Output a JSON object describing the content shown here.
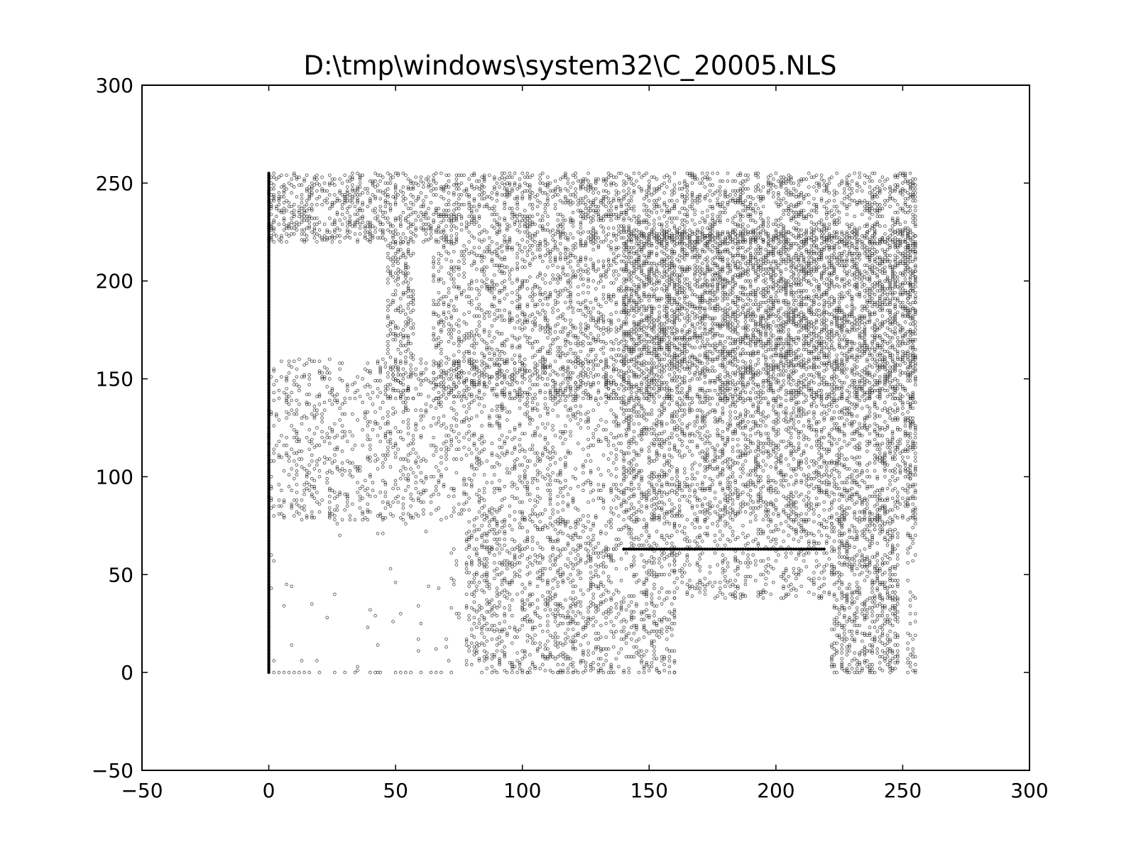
{
  "chart_data": {
    "type": "scatter",
    "title": "D:\\tmp\\windows\\system32\\C_20005.NLS",
    "xlabel": "",
    "ylabel": "",
    "xlim": [
      -50,
      300
    ],
    "ylim": [
      -50,
      300
    ],
    "x_ticks": [
      -50,
      0,
      50,
      100,
      150,
      200,
      250,
      300
    ],
    "y_ticks": [
      -50,
      0,
      50,
      100,
      150,
      200,
      250,
      300
    ],
    "x_tick_labels": [
      "−50",
      "0",
      "50",
      "100",
      "150",
      "200",
      "250",
      "300"
    ],
    "y_tick_labels": [
      "−50",
      "0",
      "50",
      "100",
      "150",
      "200",
      "250",
      "300"
    ],
    "grid": false,
    "legend": "none",
    "marker": "small hollow circle",
    "marker_color": "#000000",
    "series": [
      {
        "values_note_free": true,
        "lines": [
          {
            "kind": "vertical",
            "x": 0,
            "y_from": 0,
            "y_to": 255
          },
          {
            "kind": "horizontal",
            "y": 63,
            "x_from": 140,
            "x_to": 219
          },
          {
            "kind": "horizontal",
            "y": 63,
            "x_from": 78,
            "x_to": 140,
            "sparse": true
          },
          {
            "kind": "horizontal",
            "y": 0,
            "x_from": 0,
            "x_to": 160,
            "sparse": true
          }
        ],
        "regions": [
          {
            "x": [
              0,
              255
            ],
            "y": [
              220,
              255
            ],
            "density": 0.55
          },
          {
            "x": [
              47,
              57
            ],
            "y": [
              140,
              220
            ],
            "density": 0.5
          },
          {
            "x": [
              65,
              140
            ],
            "y": [
              140,
              220
            ],
            "density": 0.45
          },
          {
            "x": [
              140,
              255
            ],
            "y": [
              140,
              225
            ],
            "density": 0.85
          },
          {
            "x": [
              0,
              140
            ],
            "y": [
              78,
              160
            ],
            "density": 0.3
          },
          {
            "x": [
              140,
              255
            ],
            "y": [
              78,
              140
            ],
            "density": 0.55
          },
          {
            "x": [
              78,
              160
            ],
            "y": [
              0,
              78
            ],
            "density": 0.4
          },
          {
            "x": [
              160,
              222
            ],
            "y": [
              38,
              78
            ],
            "density": 0.35
          },
          {
            "x": [
              222,
              248
            ],
            "y": [
              0,
              78
            ],
            "density": 0.6
          },
          {
            "x": [
              252,
              255
            ],
            "y": [
              0,
              250
            ],
            "density": 0.35
          },
          {
            "x": [
              0,
              78
            ],
            "y": [
              0,
              78
            ],
            "density": 0.02
          }
        ]
      }
    ]
  }
}
